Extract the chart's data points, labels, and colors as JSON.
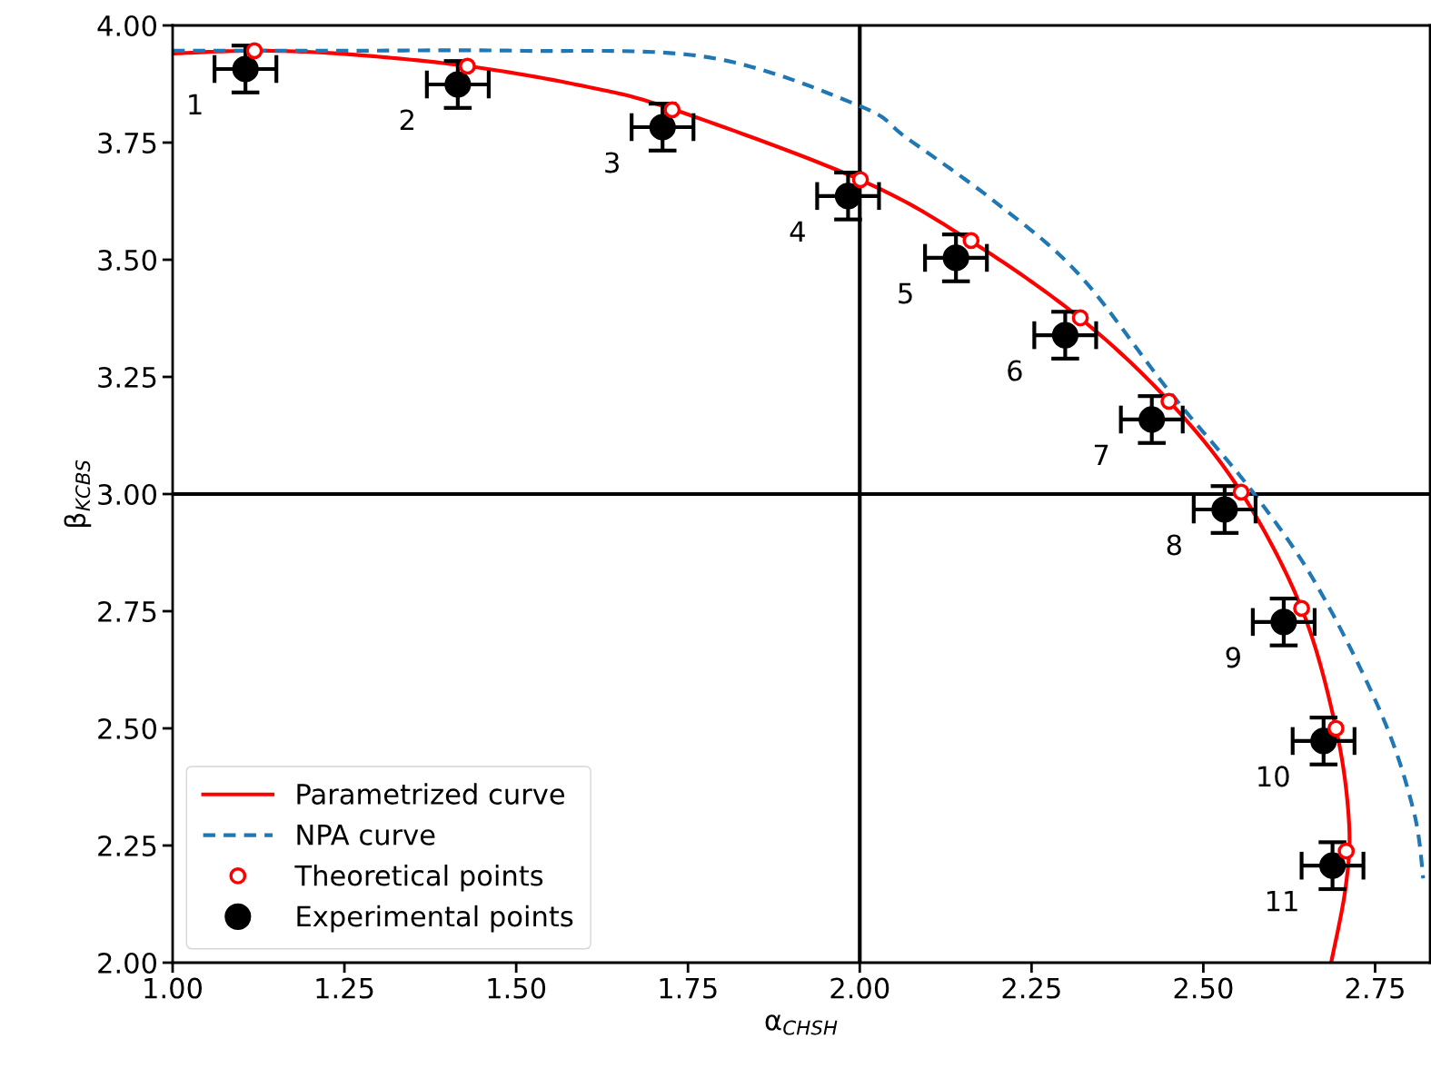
{
  "chart_data": {
    "type": "scatter",
    "xlabel": "α$_{CHSH}$",
    "ylabel": "β$_{KCBS}$",
    "xlim": [
      1.0,
      2.83
    ],
    "ylim": [
      2.0,
      4.0
    ],
    "xticks": [
      {
        "value": 1.0,
        "label": "1.00"
      },
      1.25,
      {
        "value": 1.5,
        "label": "1.50"
      },
      1.75,
      {
        "value": 2.0,
        "label": "2.00"
      },
      2.25,
      {
        "value": 2.5,
        "label": "2.50"
      },
      2.75
    ],
    "yticks": [
      {
        "value": 2.0,
        "label": "2.00"
      },
      2.25,
      {
        "value": 2.5,
        "label": "2.50"
      },
      2.75,
      {
        "value": 3.0,
        "label": "3.00"
      },
      3.25,
      {
        "value": 3.5,
        "label": "3.50"
      },
      3.75,
      {
        "value": 4.0,
        "label": "4.00"
      }
    ],
    "grid": false,
    "legend": "bottom left",
    "ref_lines": [
      {
        "axis": "x",
        "value": 2.0,
        "color": "#000000"
      },
      {
        "axis": "y",
        "value": 3.0,
        "color": "#000000"
      }
    ],
    "series": [
      {
        "name": "Parametrized curve",
        "type": "line",
        "color": "#ff0000",
        "line_style": "solid",
        "x": [
          1.0,
          1.12,
          1.25,
          1.43,
          1.6,
          1.73,
          2.0,
          2.16,
          2.32,
          2.45,
          2.555,
          2.643,
          2.693,
          2.712,
          2.707,
          2.686
        ],
        "values": [
          3.94,
          3.946,
          3.939,
          3.913,
          3.87,
          3.82,
          3.671,
          3.541,
          3.376,
          3.198,
          3.004,
          2.756,
          2.5,
          2.3,
          2.16,
          2.0
        ]
      },
      {
        "name": "NPA curve",
        "type": "line",
        "color": "#1f77b4",
        "line_style": "dashed",
        "x": [
          1.0,
          1.25,
          1.5,
          1.78,
          2.0,
          2.07,
          2.2,
          2.32,
          2.45,
          2.57,
          2.664,
          2.759,
          2.806,
          2.82
        ],
        "values": [
          3.946,
          3.946,
          3.946,
          3.932,
          3.828,
          3.758,
          3.62,
          3.467,
          3.22,
          3.008,
          2.808,
          2.531,
          2.324,
          2.18
        ]
      },
      {
        "name": "Theoretical points",
        "type": "scatter",
        "color": "#ff0000",
        "marker": "circle",
        "x": [
          1.119,
          1.429,
          1.727,
          2.001,
          2.162,
          2.321,
          2.45,
          2.555,
          2.643,
          2.693,
          2.708
        ],
        "values": [
          3.946,
          3.913,
          3.82,
          3.671,
          3.541,
          3.376,
          3.198,
          3.004,
          2.756,
          2.5,
          2.238
        ]
      },
      {
        "name": "Experimental points",
        "color": "#000000",
        "marker": "circle",
        "x": [
          1.106,
          1.415,
          1.713,
          1.983,
          2.14,
          2.299,
          2.425,
          2.531,
          2.617,
          2.675,
          2.688
        ],
        "values": [
          3.907,
          3.874,
          3.783,
          3.636,
          3.504,
          3.339,
          3.159,
          2.967,
          2.727,
          2.473,
          2.207
        ],
        "errors": [
          0.05,
          0.05,
          0.05,
          0.05,
          0.05,
          0.05,
          0.05,
          0.05,
          0.05,
          0.05,
          0.05
        ],
        "xerrors": [
          0.045,
          0.045,
          0.045,
          0.045,
          0.045,
          0.045,
          0.045,
          0.045,
          0.045,
          0.045,
          0.045
        ]
      }
    ],
    "annotations": [
      {
        "text": "1",
        "x": 1.106,
        "y": 3.907
      },
      {
        "text": "2",
        "x": 1.415,
        "y": 3.874
      },
      {
        "text": "3",
        "x": 1.713,
        "y": 3.783
      },
      {
        "text": "4",
        "x": 1.983,
        "y": 3.636
      },
      {
        "text": "5",
        "x": 2.14,
        "y": 3.504
      },
      {
        "text": "6",
        "x": 2.299,
        "y": 3.339
      },
      {
        "text": "7",
        "x": 2.425,
        "y": 3.159
      },
      {
        "text": "8",
        "x": 2.531,
        "y": 2.967
      },
      {
        "text": "9",
        "x": 2.617,
        "y": 2.727
      },
      {
        "text": "10",
        "x": 2.675,
        "y": 2.473
      },
      {
        "text": "11",
        "x": 2.688,
        "y": 2.207
      }
    ]
  }
}
